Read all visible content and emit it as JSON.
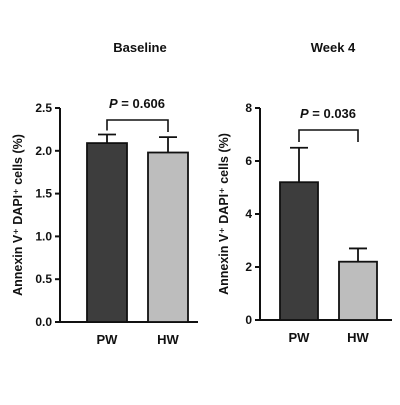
{
  "chart_data": [
    {
      "type": "bar",
      "title": "Baseline",
      "ylabel": "Annexin V⁺ DAPI⁺ cells (%)",
      "ylim": [
        0,
        2.5
      ],
      "yticks": [
        "0.0",
        "0.5",
        "1.0",
        "1.5",
        "2.0",
        "2.5"
      ],
      "yticks_values": [
        0,
        0.5,
        1.0,
        1.5,
        2.0,
        2.5
      ],
      "categories": [
        "PW",
        "HW"
      ],
      "values": [
        2.09,
        1.98
      ],
      "errors": [
        0.1,
        0.18
      ],
      "bar_colors": [
        "#3d3d3d",
        "#bdbdbd"
      ],
      "significance": {
        "p_prefix": "P",
        "p_value": " = 0.606",
        "between": [
          "PW",
          "HW"
        ]
      }
    },
    {
      "type": "bar",
      "title": "Week 4",
      "ylabel": "Annexin V⁺ DAPI⁺ cells (%)",
      "ylim": [
        0,
        8
      ],
      "yticks": [
        "0",
        "2",
        "4",
        "6",
        "8"
      ],
      "yticks_values": [
        0,
        2,
        4,
        6,
        8
      ],
      "categories": [
        "PW",
        "HW"
      ],
      "values": [
        5.2,
        2.2
      ],
      "errors": [
        1.3,
        0.5
      ],
      "bar_colors": [
        "#3d3d3d",
        "#bdbdbd"
      ],
      "significance": {
        "p_prefix": "P",
        "p_value": " = 0.036",
        "between": [
          "PW",
          "HW"
        ]
      }
    }
  ]
}
